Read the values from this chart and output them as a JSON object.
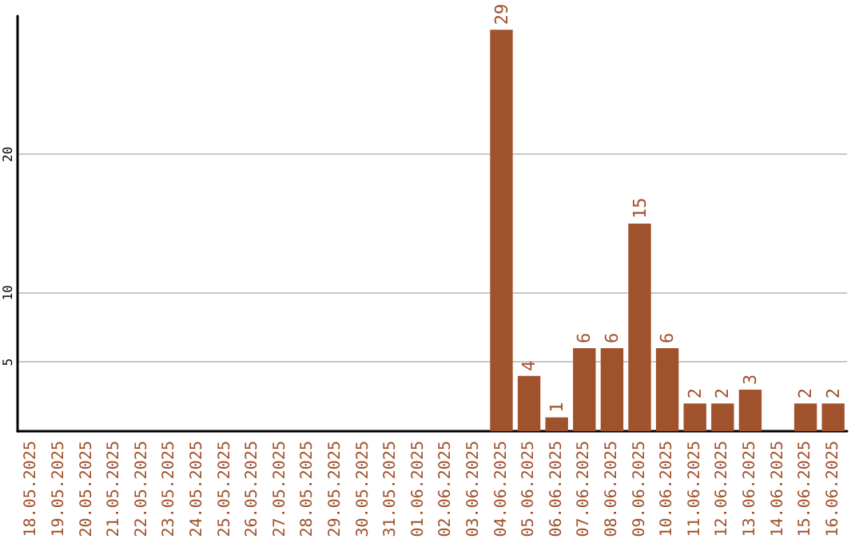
{
  "chart_data": {
    "type": "bar",
    "categories": [
      "18.05.2025",
      "19.05.2025",
      "20.05.2025",
      "21.05.2025",
      "22.05.2025",
      "23.05.2025",
      "24.05.2025",
      "25.05.2025",
      "26.05.2025",
      "27.05.2025",
      "28.05.2025",
      "29.05.2025",
      "30.05.2025",
      "31.05.2025",
      "01.06.2025",
      "02.06.2025",
      "03.06.2025",
      "04.06.2025",
      "05.06.2025",
      "06.06.2025",
      "07.06.2025",
      "08.06.2025",
      "09.06.2025",
      "10.06.2025",
      "11.06.2025",
      "12.06.2025",
      "13.06.2025",
      "14.06.2025",
      "15.06.2025",
      "16.06.2025"
    ],
    "values": [
      0,
      0,
      0,
      0,
      0,
      0,
      0,
      0,
      0,
      0,
      0,
      0,
      0,
      0,
      0,
      0,
      0,
      29,
      4,
      1,
      6,
      6,
      15,
      6,
      2,
      2,
      3,
      0,
      2,
      2
    ],
    "value_labels": [
      null,
      null,
      null,
      null,
      null,
      null,
      null,
      null,
      null,
      null,
      null,
      null,
      null,
      null,
      null,
      null,
      null,
      "29",
      "4",
      "1",
      "6",
      "6",
      "15",
      "6",
      "2",
      "2",
      "3",
      null,
      "2",
      "2"
    ],
    "color": "#a0522d",
    "ylim": [
      0,
      30
    ],
    "yticks": [
      5,
      10,
      20
    ],
    "grid": "y"
  }
}
